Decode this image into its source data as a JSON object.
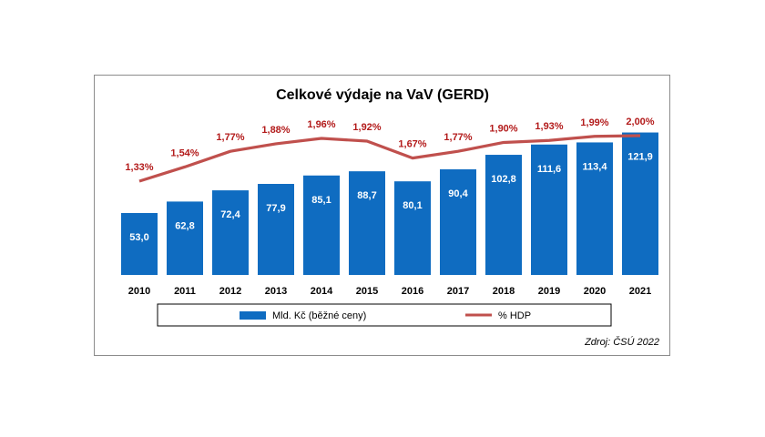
{
  "chart_data": {
    "type": "bar",
    "title": "Celkové výdaje na VaV (GERD)",
    "categories": [
      "2010",
      "2011",
      "2012",
      "2013",
      "2014",
      "2015",
      "2016",
      "2017",
      "2018",
      "2019",
      "2020",
      "2021"
    ],
    "series": [
      {
        "name": "Mld. Kč (běžné ceny)",
        "type": "bar",
        "values": [
          53.0,
          62.8,
          72.4,
          77.9,
          85.1,
          88.7,
          80.1,
          90.4,
          102.8,
          111.6,
          113.4,
          121.9
        ],
        "labels": [
          "53,0",
          "62,8",
          "72,4",
          "77,9",
          "85,1",
          "88,7",
          "80,1",
          "90,4",
          "102,8",
          "111,6",
          "113,4",
          "121,9"
        ],
        "color": "#0f6cc1"
      },
      {
        "name": "% HDP",
        "type": "line",
        "values": [
          1.33,
          1.54,
          1.77,
          1.88,
          1.96,
          1.92,
          1.67,
          1.77,
          1.9,
          1.93,
          1.99,
          2.0
        ],
        "labels": [
          "1,33%",
          "1,54%",
          "1,77%",
          "1,88%",
          "1,96%",
          "1,92%",
          "1,67%",
          "1,77%",
          "1,90%",
          "1,93%",
          "1,99%",
          "2,00%"
        ],
        "color": "#c0504d"
      }
    ],
    "grid": false,
    "legend_position": "bottom"
  },
  "source": "Zdroj: ČSÚ 2022"
}
